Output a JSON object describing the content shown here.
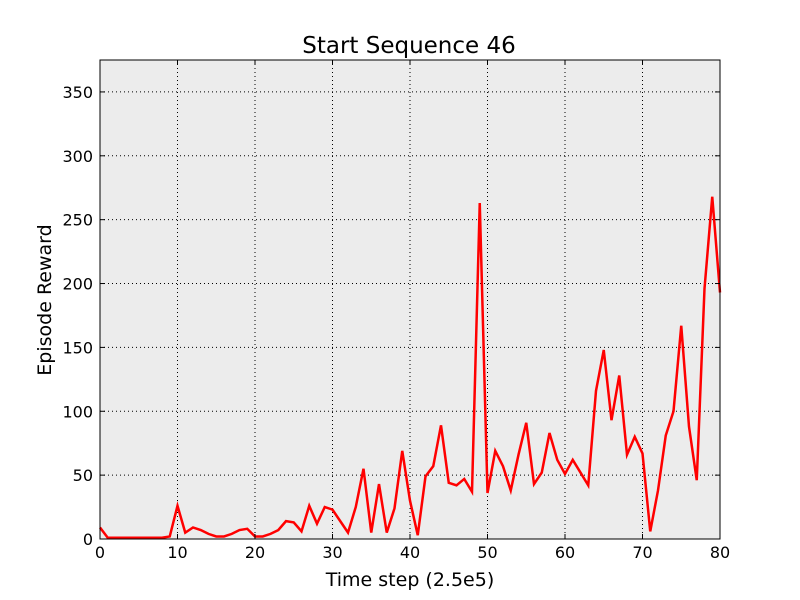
{
  "chart_data": {
    "type": "line",
    "title": "Start Sequence 46",
    "xlabel": "Time step (2.5e5)",
    "ylabel": "Episode Reward",
    "xlim": [
      0,
      80
    ],
    "ylim": [
      0,
      375
    ],
    "xticks": [
      0,
      10,
      20,
      30,
      40,
      50,
      60,
      70,
      80
    ],
    "yticks": [
      0,
      50,
      100,
      150,
      200,
      250,
      300,
      350
    ],
    "grid": true,
    "background": "#ececec",
    "series": [
      {
        "color": "#ff0000",
        "x": [
          0,
          1,
          2,
          3,
          4,
          5,
          6,
          7,
          8,
          9,
          10,
          11,
          12,
          13,
          14,
          15,
          16,
          17,
          18,
          19,
          20,
          21,
          22,
          23,
          24,
          25,
          26,
          27,
          28,
          29,
          30,
          31,
          32,
          33,
          34,
          35,
          36,
          37,
          38,
          39,
          40,
          41,
          42,
          43,
          44,
          45,
          46,
          47,
          48,
          49,
          50,
          51,
          52,
          53,
          54,
          55,
          56,
          57,
          58,
          59,
          60,
          61,
          62,
          63,
          64,
          65,
          66,
          67,
          68,
          69,
          70,
          71,
          72,
          73,
          74,
          75,
          76,
          77,
          78,
          79,
          80
        ],
        "values": [
          9,
          1,
          1,
          1,
          1,
          1,
          1,
          1,
          1,
          2,
          26,
          5,
          9,
          7,
          4,
          2,
          2,
          4,
          7,
          8,
          2,
          2,
          4,
          7,
          14,
          13,
          6,
          26,
          12,
          25,
          23,
          14,
          5,
          25,
          55,
          5,
          43,
          5,
          24,
          69,
          30,
          3,
          49,
          57,
          89,
          44,
          42,
          47,
          37,
          263,
          36,
          69,
          57,
          38,
          66,
          91,
          43,
          52,
          83,
          62,
          51,
          62,
          52,
          42,
          116,
          148,
          93,
          128,
          66,
          80,
          67,
          6,
          38,
          81,
          100,
          167,
          88,
          46,
          196,
          268,
          193
        ]
      }
    ]
  }
}
